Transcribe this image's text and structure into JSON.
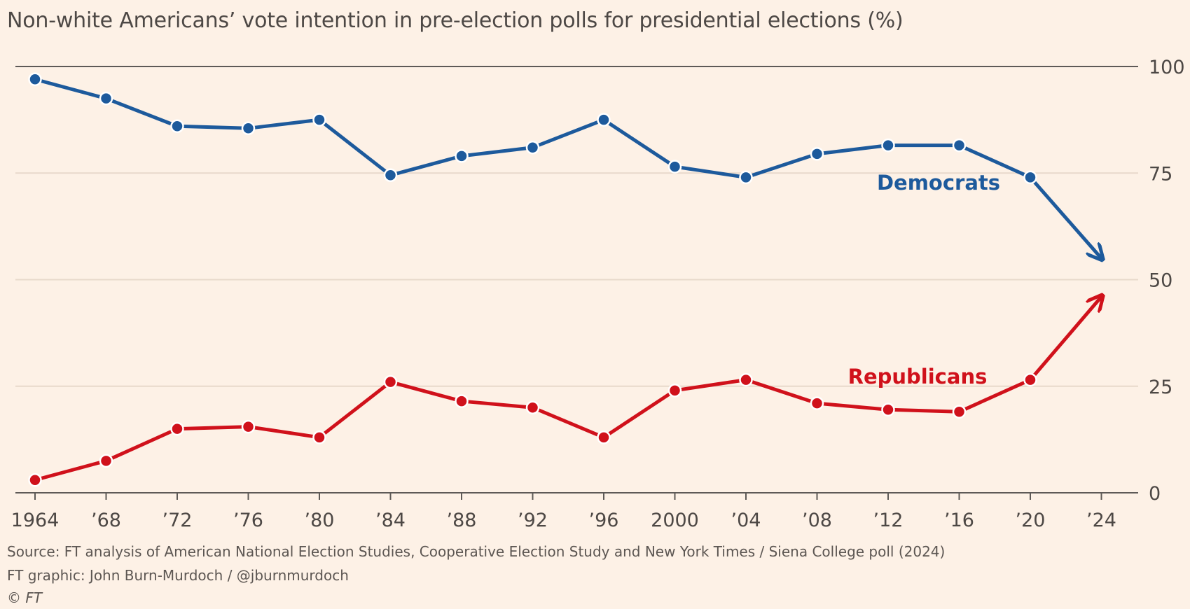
{
  "title": "Non-white Americans’ vote intention in pre-election polls for presidential elections (%)",
  "footer": {
    "source": "Source: FT analysis of American National Election Studies, Cooperative Election Study and New York Times / Siena College poll (2024)",
    "credit": "FT graphic: John Burn-Murdoch / @jburnmurdoch",
    "copyright": "© FT"
  },
  "colors": {
    "background": "#fdf1e6",
    "democrats": "#1d5a9c",
    "republicans": "#d0111b",
    "grid": "#e8d9cb",
    "axis": "#5e5a57",
    "text": "#4d4845"
  },
  "chart_data": {
    "type": "line",
    "title": "Non-white Americans’ vote intention in pre-election polls for presidential elections (%)",
    "x": [
      1964,
      1968,
      1972,
      1976,
      1980,
      1984,
      1988,
      1992,
      1996,
      2000,
      2004,
      2008,
      2012,
      2016,
      2020,
      2024
    ],
    "x_tick_labels": [
      "1964",
      "’68",
      "’72",
      "’76",
      "’80",
      "’84",
      "’88",
      "’92",
      "’96",
      "2000",
      "’04",
      "’08",
      "’12",
      "’16",
      "’20",
      "’24"
    ],
    "y_ticks": [
      0,
      25,
      50,
      75,
      100
    ],
    "ylim": [
      0,
      100
    ],
    "y_axis_side": "right",
    "grid": true,
    "legend": "inline labels",
    "series": [
      {
        "name": "Democrats",
        "color": "#1d5a9c",
        "values": [
          97,
          92.5,
          86,
          85.5,
          87.5,
          74.5,
          79,
          81,
          87.5,
          76.5,
          74,
          79.5,
          81.5,
          81.5,
          74,
          55
        ],
        "final_point_style": "arrow"
      },
      {
        "name": "Republicans",
        "color": "#d0111b",
        "values": [
          3,
          7.5,
          15,
          15.5,
          13,
          26,
          21.5,
          20,
          13,
          24,
          26.5,
          21,
          19.5,
          19,
          26.5,
          46
        ],
        "final_point_style": "arrow"
      }
    ],
    "annotations": [
      "Democrats",
      "Republicans"
    ]
  }
}
